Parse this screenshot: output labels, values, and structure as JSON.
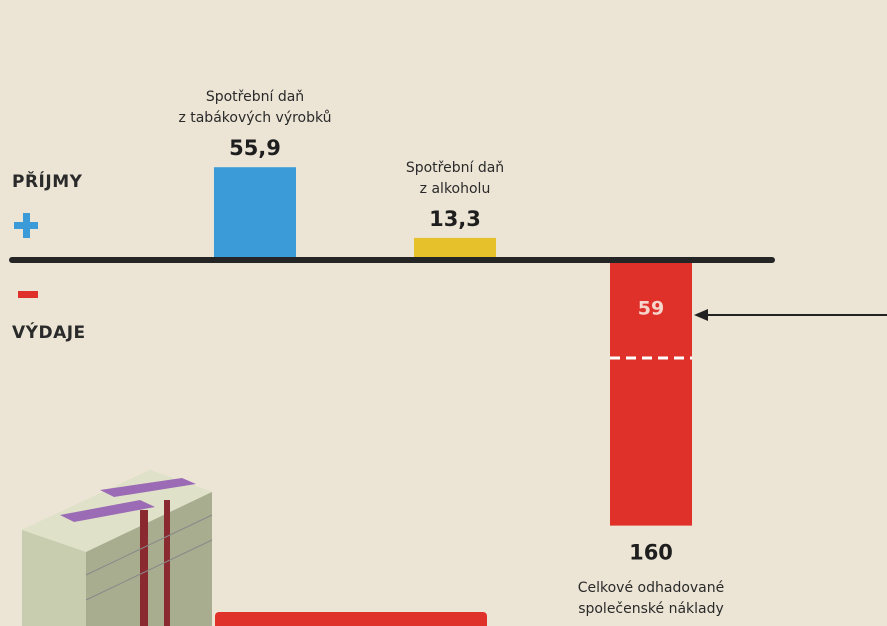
{
  "chart_data": {
    "type": "bar",
    "categories": [
      "Spotřební daň\nz tabákových výrobků",
      "Spotřební daň\nz alkoholu",
      "Celkové odhadované\nspolečenské náklady"
    ],
    "values": [
      55.9,
      13.3,
      -160
    ],
    "value_labels": [
      "55,9",
      "13,3",
      "160"
    ],
    "colors": [
      "#3b9bd8",
      "#e6c12b",
      "#e0302a"
    ],
    "marker": 59,
    "side_labels": {
      "income": "PŘÍJMY",
      "expense": "VÝDAJE"
    }
  }
}
